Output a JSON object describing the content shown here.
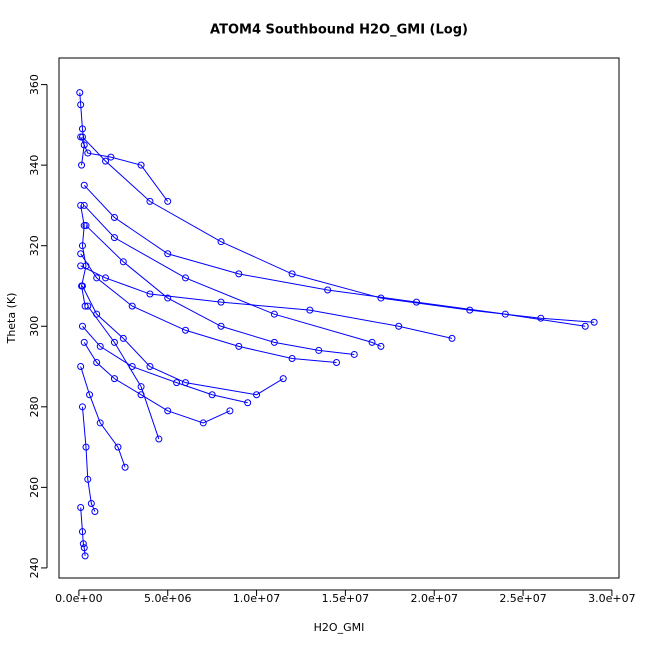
{
  "chart_data": {
    "type": "line-points",
    "title": "ATOM4 Southbound H2O_GMI (Log)",
    "x_label": "H2O_GMI",
    "y_label": "Theta (K)",
    "xlim": [
      -1120000,
      30400000
    ],
    "ylim": [
      237.5,
      366.6
    ],
    "xticks": [
      {
        "value": 0,
        "label": "0.0e+00"
      },
      {
        "value": 5000000,
        "label": "5.0e+06"
      },
      {
        "value": 10000000,
        "label": "1.0e+07"
      },
      {
        "value": 15000000,
        "label": "1.5e+07"
      },
      {
        "value": 20000000,
        "label": "2.0e+07"
      },
      {
        "value": 25000000,
        "label": "2.5e+07"
      },
      {
        "value": 30000000,
        "label": "3.0e+07"
      }
    ],
    "yticks": [
      240,
      260,
      280,
      300,
      320,
      340,
      360
    ],
    "series": [
      {
        "color": "#0000ff",
        "x": [
          200000,
          1500000,
          4000000,
          8000000,
          12000000,
          17000000,
          22000000,
          26000000,
          29000000
        ],
        "values": [
          347,
          341,
          331,
          321,
          313,
          307,
          304,
          302,
          301
        ]
      },
      {
        "color": "#0000ff",
        "x": [
          300000,
          2000000,
          5000000,
          9000000,
          14000000,
          19000000,
          24000000,
          28500000
        ],
        "values": [
          335,
          327,
          318,
          313,
          309,
          306,
          303,
          300
        ]
      },
      {
        "color": "#0000ff",
        "x": [
          100000,
          1000000,
          3000000,
          6000000,
          9000000,
          12000000,
          14500000
        ],
        "values": [
          318,
          312,
          305,
          299,
          295,
          292,
          291
        ]
      },
      {
        "color": "#0000ff",
        "x": [
          400000,
          2500000,
          5000000,
          8000000,
          11000000,
          13500000,
          15500000
        ],
        "values": [
          325,
          316,
          307,
          300,
          296,
          294,
          293
        ]
      },
      {
        "color": "#0000ff",
        "x": [
          200000,
          1200000,
          3000000,
          5500000,
          7500000,
          9500000
        ],
        "values": [
          300,
          295,
          290,
          286,
          283,
          281
        ]
      },
      {
        "color": "#0000ff",
        "x": [
          300000,
          1000000,
          2000000,
          3500000,
          5000000,
          7000000,
          8500000
        ],
        "values": [
          296,
          291,
          287,
          283,
          279,
          276,
          279
        ]
      },
      {
        "color": "#0000ff",
        "x": [
          100000,
          600000,
          1200000,
          2200000,
          2600000
        ],
        "values": [
          290,
          283,
          276,
          270,
          265
        ]
      },
      {
        "color": "#0000ff",
        "x": [
          200000,
          400000,
          500000,
          700000,
          900000
        ],
        "values": [
          280,
          270,
          262,
          256,
          254
        ]
      },
      {
        "color": "#0000ff",
        "x": [
          100000,
          200000,
          250000,
          300000,
          350000
        ],
        "values": [
          255,
          249,
          246,
          245,
          243
        ]
      },
      {
        "color": "#0000ff",
        "x": [
          50000,
          100000,
          200000,
          300000,
          150000
        ],
        "values": [
          358,
          355,
          349,
          345,
          340
        ]
      },
      {
        "color": "#0000ff",
        "x": [
          100000,
          500000,
          1800000,
          3500000,
          5000000
        ],
        "values": [
          347,
          343,
          342,
          340,
          331
        ]
      },
      {
        "color": "#0000ff",
        "x": [
          300000,
          2000000,
          6000000,
          11000000,
          16500000,
          17000000
        ],
        "values": [
          330,
          322,
          312,
          303,
          296,
          295
        ]
      },
      {
        "color": "#0000ff",
        "x": [
          100000,
          1500000,
          4000000,
          8000000,
          13000000,
          18000000,
          21000000
        ],
        "values": [
          315,
          312,
          308,
          306,
          304,
          300,
          297
        ]
      },
      {
        "color": "#0000ff",
        "x": [
          200000,
          1000000,
          2500000,
          4000000,
          6000000,
          10000000,
          11500000
        ],
        "values": [
          310,
          303,
          297,
          290,
          286,
          283,
          287
        ]
      },
      {
        "color": "#0000ff",
        "x": [
          100000,
          300000,
          200000,
          400000,
          150000,
          350000
        ],
        "values": [
          330,
          325,
          320,
          315,
          310,
          305
        ]
      },
      {
        "color": "#0000ff",
        "x": [
          500000,
          2000000,
          3500000,
          4500000
        ],
        "values": [
          305,
          296,
          285,
          272
        ]
      }
    ]
  }
}
